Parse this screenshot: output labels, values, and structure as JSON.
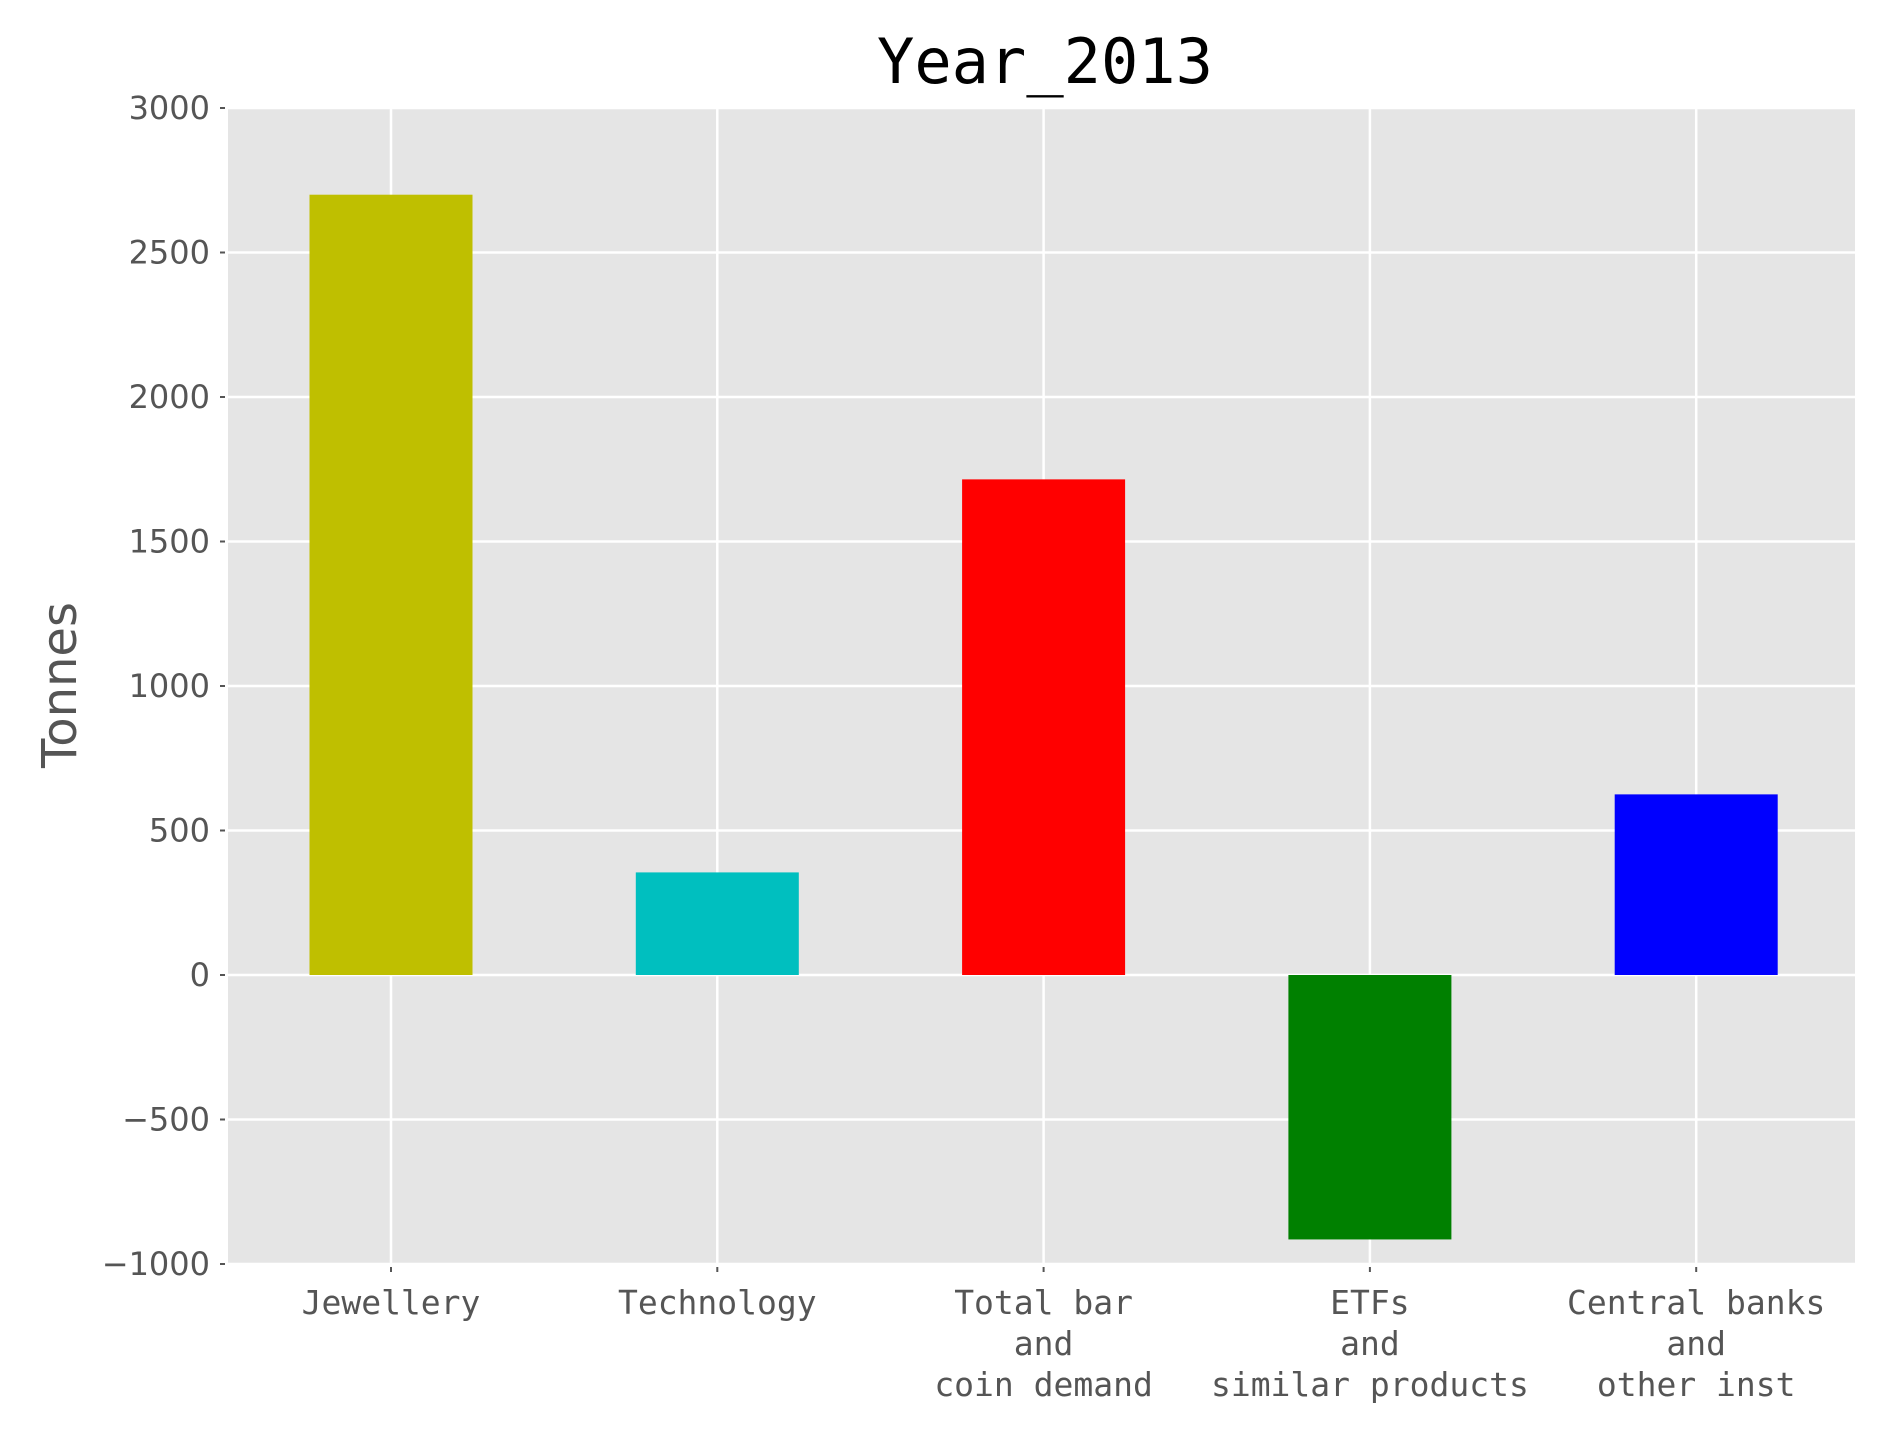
{
  "chart_data": {
    "type": "bar",
    "title": "Year_2013",
    "xlabel": "",
    "ylabel": "Tonnes",
    "ylim": [
      -1000,
      3000
    ],
    "yticks": [
      -1000,
      -500,
      0,
      500,
      1000,
      1500,
      2000,
      2500,
      3000
    ],
    "ytick_labels": [
      "−1000",
      "−500",
      "0",
      "500",
      "1000",
      "1500",
      "2000",
      "2500",
      "3000"
    ],
    "grid": true,
    "background": "#e5e5e5",
    "categories": [
      [
        "Jewellery"
      ],
      [
        "Technology"
      ],
      [
        "Total bar",
        "and",
        "coin demand"
      ],
      [
        "ETFs",
        "and",
        "similar products"
      ],
      [
        "Central banks",
        "and",
        "other inst"
      ]
    ],
    "values": [
      2700,
      355,
      1715,
      -915,
      625
    ],
    "colors": [
      "#bfbf00",
      "#00bfbf",
      "#ff0000",
      "#008000",
      "#0000ff"
    ]
  }
}
